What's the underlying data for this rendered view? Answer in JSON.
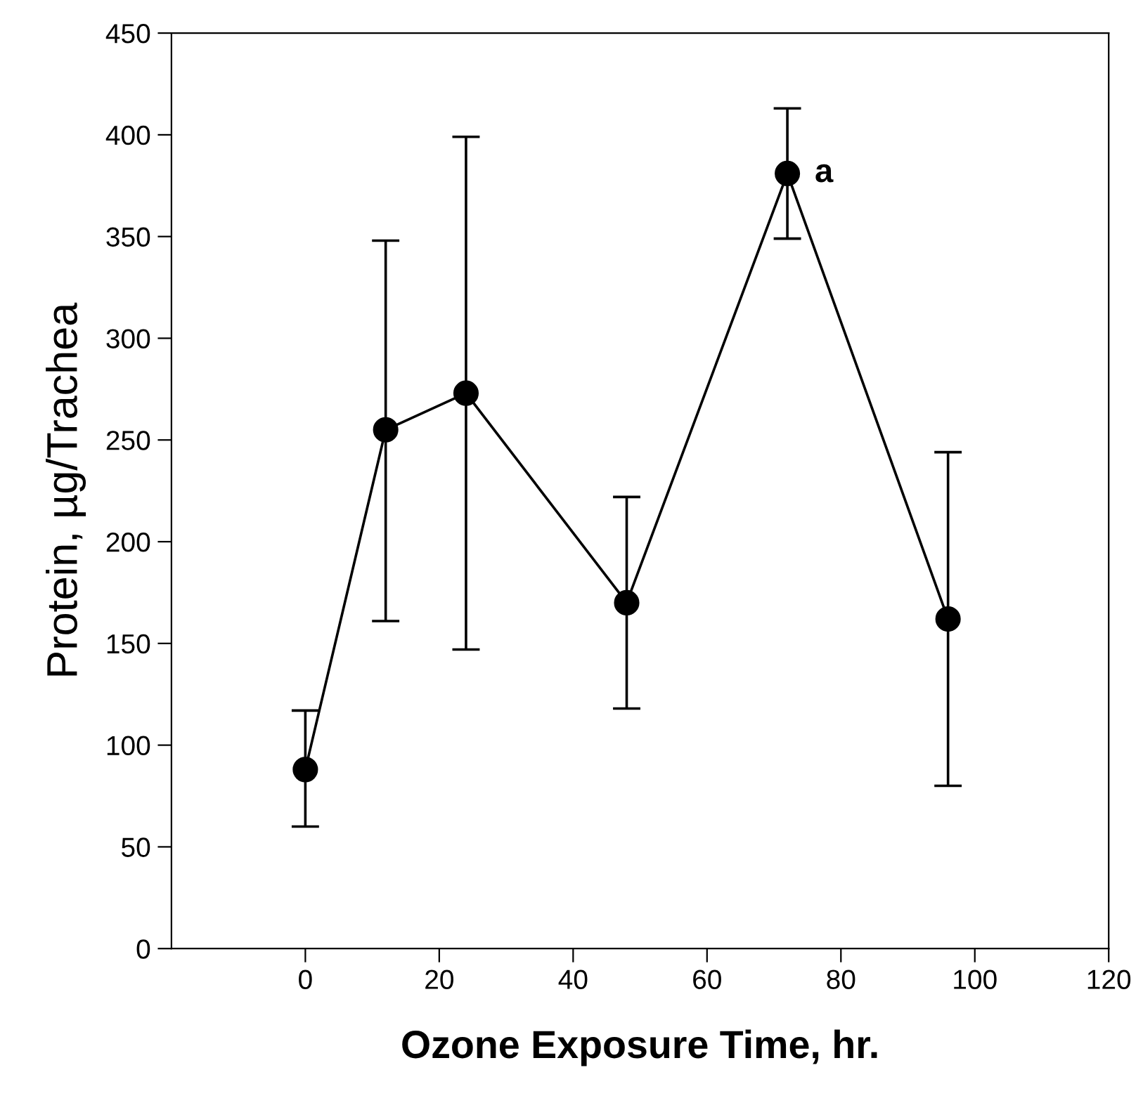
{
  "chart_data": {
    "type": "line",
    "xlabel": "Ozone Exposure Time, hr.",
    "ylabel": "Protein, µg/Trachea",
    "x": [
      0,
      12,
      24,
      48,
      72,
      96
    ],
    "series": [
      {
        "color": "#000000",
        "values": [
          88,
          255,
          273,
          170,
          381,
          162
        ],
        "errors": [
          [
            60,
            117
          ],
          [
            161,
            348
          ],
          [
            147,
            399
          ],
          [
            118,
            222
          ],
          [
            349,
            413
          ],
          [
            80,
            244
          ]
        ]
      }
    ],
    "annotations": [
      {
        "text": "a",
        "x": 72,
        "y": 381
      }
    ],
    "xlim": [
      -20,
      120
    ],
    "xticks": [
      0,
      20,
      40,
      60,
      80,
      100,
      120
    ],
    "ylim": [
      0,
      450
    ],
    "yticks": [
      0,
      50,
      100,
      150,
      200,
      250,
      300,
      350,
      400,
      450
    ],
    "marker": "circle",
    "line_style": "solid",
    "grid": false,
    "legend": false
  }
}
